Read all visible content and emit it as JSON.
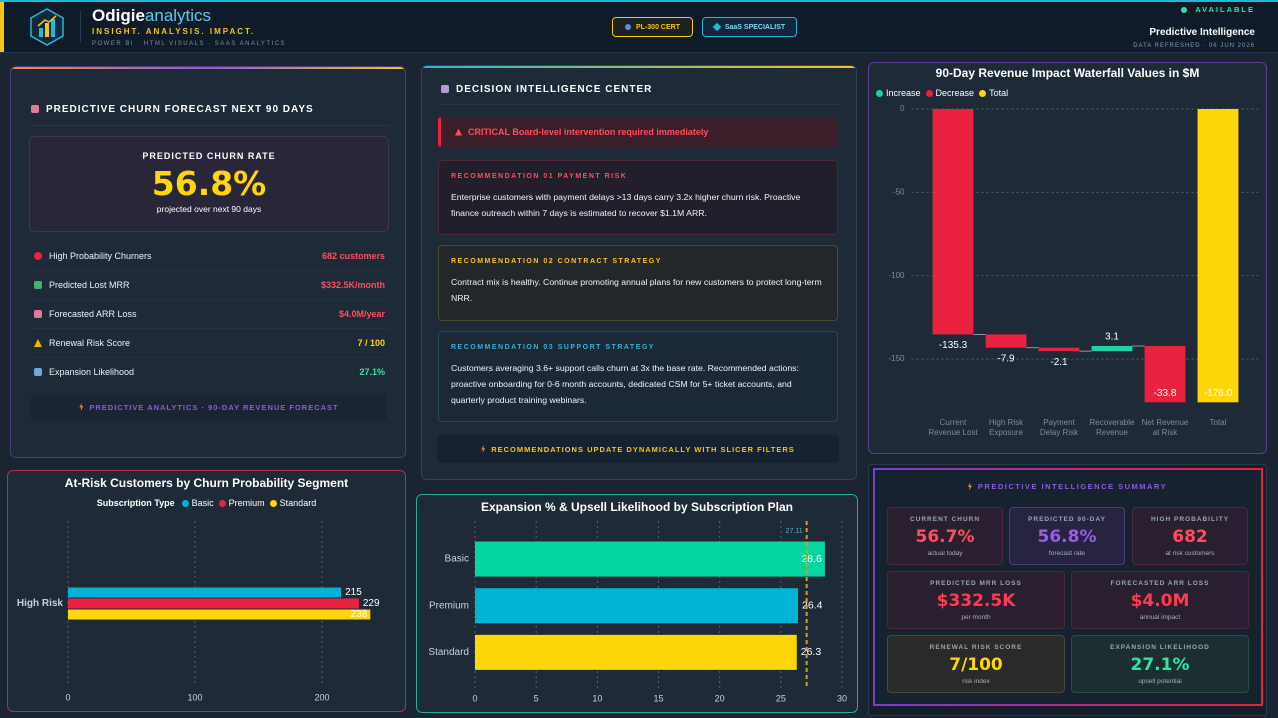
{
  "header": {
    "brand": "Odigie",
    "brand_accent": "analytics",
    "tagline": "INSIGHT. ANALYSIS. IMPACT.",
    "subline": "POWER BI · HTML VISUALS · SAAS ANALYTICS",
    "badges": [
      "PL-300 CERT",
      "SaaS SPECIALIST"
    ],
    "status": "AVAILABLE",
    "title": "Predictive Intelligence",
    "refreshed": "DATA REFRESHED · 06 JUN 2026"
  },
  "churn_panel": {
    "title": "PREDICTIVE CHURN FORECAST NEXT 90 DAYS",
    "kpi": {
      "label": "PREDICTED CHURN RATE",
      "value": "56.8%",
      "note": "projected over next 90 days"
    },
    "rows": [
      {
        "label": "High Probability Churners",
        "value": "682 customers"
      },
      {
        "label": "Predicted Lost MRR",
        "value": "$332.5K/month"
      },
      {
        "label": "Forecasted ARR Loss",
        "value": "$4.0M/year"
      },
      {
        "label": "Renewal Risk Score",
        "value": "7 / 100"
      },
      {
        "label": "Expansion Likelihood",
        "value": "27.1%"
      }
    ],
    "footer": "PREDICTIVE ANALYTICS · 90-DAY REVENUE FORECAST"
  },
  "decision_panel": {
    "title": "DECISION INTELLIGENCE CENTER",
    "alert": "CRITICAL Board-level intervention required immediately",
    "recommendations": [
      {
        "heading": "RECOMMENDATION 01 PAYMENT RISK",
        "text": "Enterprise customers with payment delays >13 days carry 3.2x higher churn risk. Proactive finance outreach within 7 days is estimated to recover $1.1M ARR."
      },
      {
        "heading": "RECOMMENDATION 02 CONTRACT STRATEGY",
        "text": "Contract mix is healthy. Continue promoting annual plans for new customers to protect long-term NRR."
      },
      {
        "heading": "RECOMMENDATION 03 SUPPORT STRATEGY",
        "text": "Customers averaging 3.6+ support calls churn at 3x the base rate. Recommended actions: proactive onboarding for 0-6 month accounts, dedicated CSM for 5+ ticket accounts, and quarterly product training webinars."
      }
    ],
    "footer": "RECOMMENDATIONS UPDATE DYNAMICALLY WITH SLICER FILTERS"
  },
  "summary_panel": {
    "title": "PREDICTIVE INTELLIGENCE SUMMARY",
    "cards": [
      {
        "label": "CURRENT CHURN",
        "value": "56.7%",
        "note": "actual today"
      },
      {
        "label": "PREDICTED 90-DAY",
        "value": "56.8%",
        "note": "forecast rate"
      },
      {
        "label": "HIGH PROBABILITY",
        "value": "682",
        "note": "at risk customers"
      },
      {
        "label": "PREDICTED MRR LOSS",
        "value": "$332.5K",
        "note": "per month"
      },
      {
        "label": "FORECASTED ARR LOSS",
        "value": "$4.0M",
        "note": "annual impact"
      },
      {
        "label": "RENEWAL RISK SCORE",
        "value": "7/100",
        "note": "risk index"
      },
      {
        "label": "EXPANSION LIKELIHOOD",
        "value": "27.1%",
        "note": "upsell potential"
      }
    ]
  },
  "chart_data": [
    {
      "type": "waterfall",
      "title": "90-Day Revenue Impact Waterfall Values in $M",
      "legend": [
        {
          "name": "Increase",
          "color": "#1fd1a0"
        },
        {
          "name": "Decrease",
          "color": "#e8223f"
        },
        {
          "name": "Total",
          "color": "#ffd60a"
        }
      ],
      "categories": [
        "Current Revenue Lost",
        "High Risk Exposure",
        "Payment Delay Risk",
        "Recoverable Revenue",
        "Net Revenue at Risk",
        "Total"
      ],
      "values": [
        -135.3,
        -7.9,
        -2.1,
        3.1,
        -33.8,
        -176.0
      ],
      "value_labels": [
        "-135.3",
        "-7.9",
        "-2.1",
        "3.1",
        "-33.8",
        "-176.0"
      ],
      "ylim": [
        -177,
        3
      ],
      "yticks": [
        0,
        -50,
        -100,
        -150
      ],
      "grid": true
    },
    {
      "type": "bar",
      "orientation": "horizontal",
      "title": "At-Risk Customers by Churn Probability Segment",
      "legend_title": "Subscription Type",
      "categories": [
        "High Risk"
      ],
      "series": [
        {
          "name": "Basic",
          "color": "#00b4d8",
          "values": [
            215
          ]
        },
        {
          "name": "Premium",
          "color": "#e8223f",
          "values": [
            229
          ]
        },
        {
          "name": "Standard",
          "color": "#ffd60a",
          "values": [
            238
          ]
        }
      ],
      "xlim": [
        0,
        258
      ],
      "xticks": [
        0,
        100,
        200
      ],
      "grid": true
    },
    {
      "type": "bar",
      "orientation": "horizontal",
      "title": "Expansion % & Upsell Likelihood by Subscription Plan",
      "categories": [
        "Basic",
        "Premium",
        "Standard"
      ],
      "values": [
        28.6,
        26.4,
        26.3
      ],
      "colors": [
        "#06d6a0",
        "#00b4d8",
        "#ffd60a"
      ],
      "xlim": [
        0,
        30.3
      ],
      "xticks": [
        0,
        5,
        10,
        15,
        20,
        25,
        30
      ],
      "reference_line": {
        "value": 27.11,
        "color": "#d4a017"
      },
      "grid": true
    }
  ]
}
